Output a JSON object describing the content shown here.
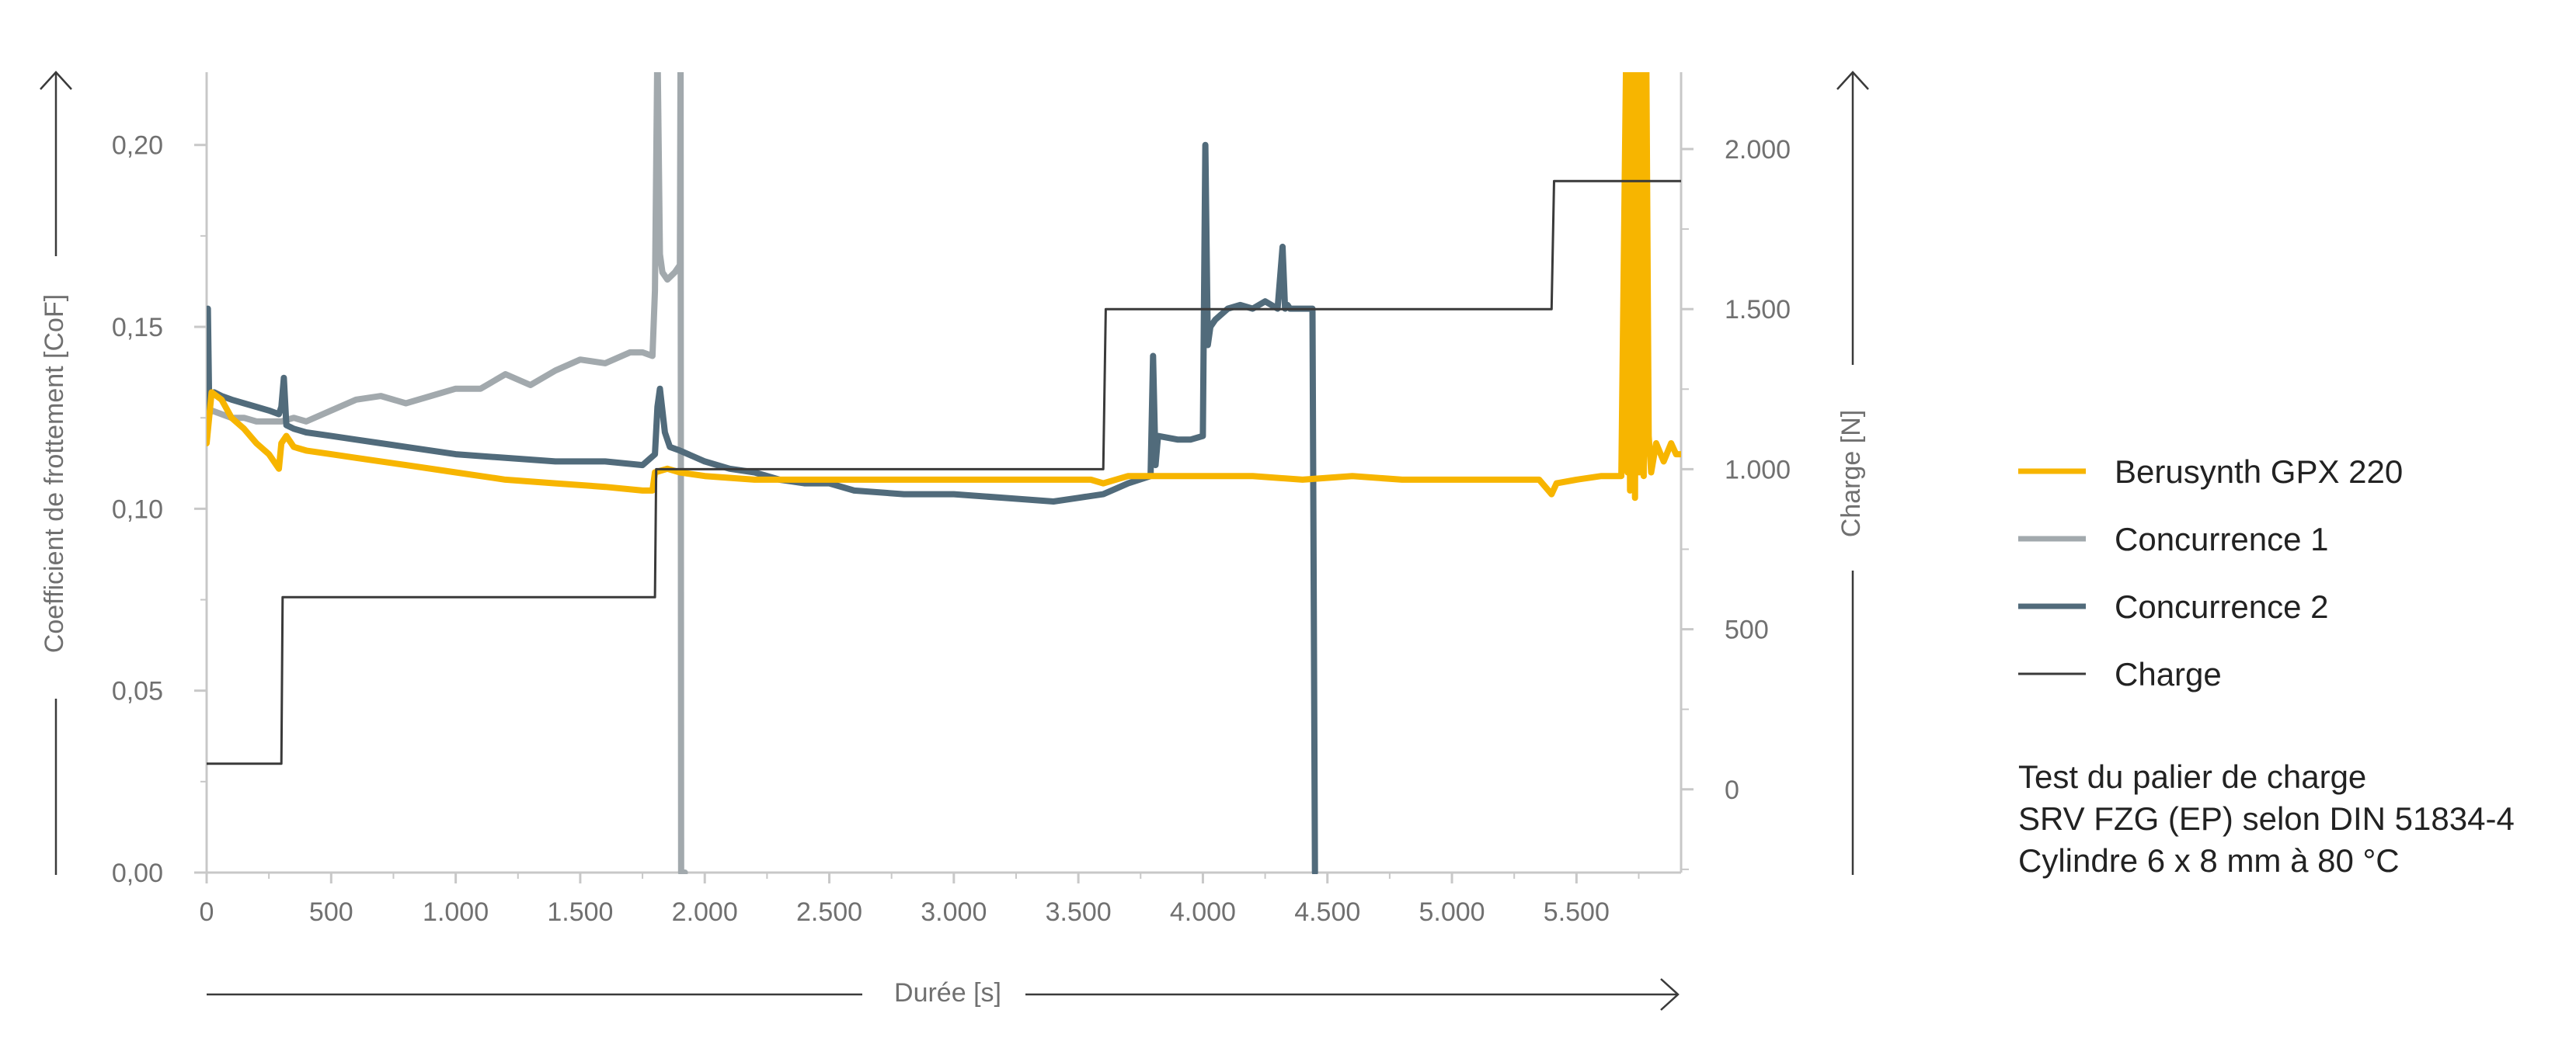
{
  "chart_data": {
    "type": "line",
    "x_axis": {
      "label": "Durée [s]",
      "range": [
        0,
        5920
      ],
      "ticks": [
        0,
        500,
        1000,
        1500,
        2000,
        2500,
        3000,
        3500,
        4000,
        4500,
        5000,
        5500
      ],
      "tick_labels": [
        "0",
        "500",
        "1.000",
        "1.500",
        "2.000",
        "2.500",
        "3.000",
        "3.500",
        "4.000",
        "4.500",
        "5.000",
        "5.500"
      ]
    },
    "y_axis_left": {
      "label": "Coefficient de frottement [CoF]",
      "range": [
        0,
        0.22
      ],
      "ticks": [
        0,
        0.05,
        0.1,
        0.15,
        0.2
      ],
      "tick_labels": [
        "0,00",
        "0,05",
        "0,10",
        "0,15",
        "0,20"
      ]
    },
    "y_axis_right": {
      "label": "Charge [N]",
      "range": [
        -260,
        2240
      ],
      "ticks": [
        0,
        500,
        1000,
        1500,
        2000
      ],
      "tick_labels": [
        "0",
        "500",
        "1.000",
        "1.500",
        "2.000"
      ]
    },
    "grid": false,
    "legend_position": "right",
    "series": [
      {
        "name": "Berusynth GPX 220",
        "color": "#F7B500",
        "axis": "left",
        "x": [
          0,
          20,
          60,
          100,
          150,
          200,
          250,
          290,
          300,
          320,
          350,
          400,
          500,
          600,
          800,
          1000,
          1200,
          1400,
          1600,
          1750,
          1790,
          1800,
          1850,
          1900,
          2000,
          2200,
          2400,
          2600,
          2800,
          3000,
          3200,
          3400,
          3500,
          3550,
          3600,
          3700,
          3800,
          3900,
          4000,
          4200,
          4400,
          4600,
          4800,
          5000,
          5200,
          5350,
          5400,
          5420,
          5500,
          5600,
          5680,
          5700,
          5705,
          5710,
          5715,
          5720,
          5725,
          5730,
          5735,
          5740,
          5745,
          5750,
          5755,
          5760,
          5770,
          5780,
          5790,
          5800,
          5820,
          5850,
          5880,
          5900,
          5920
        ],
        "y": [
          0.118,
          0.132,
          0.13,
          0.125,
          0.122,
          0.118,
          0.115,
          0.111,
          0.118,
          0.12,
          0.117,
          0.116,
          0.115,
          0.114,
          0.112,
          0.11,
          0.108,
          0.107,
          0.106,
          0.105,
          0.105,
          0.11,
          0.111,
          0.11,
          0.109,
          0.108,
          0.108,
          0.108,
          0.108,
          0.108,
          0.108,
          0.108,
          0.108,
          0.108,
          0.107,
          0.109,
          0.109,
          0.109,
          0.109,
          0.109,
          0.108,
          0.109,
          0.108,
          0.108,
          0.108,
          0.108,
          0.104,
          0.107,
          0.108,
          0.109,
          0.109,
          0.25,
          0.11,
          0.25,
          0.105,
          0.25,
          0.11,
          0.25,
          0.103,
          0.25,
          0.11,
          0.25,
          0.11,
          0.25,
          0.109,
          0.25,
          0.12,
          0.11,
          0.118,
          0.113,
          0.118,
          0.115,
          0.115
        ]
      },
      {
        "name": "Concurrence 1",
        "color": "#A2A9AD",
        "axis": "left",
        "x": [
          0,
          20,
          60,
          100,
          150,
          200,
          250,
          300,
          350,
          400,
          500,
          600,
          700,
          800,
          900,
          1000,
          1100,
          1200,
          1300,
          1400,
          1500,
          1600,
          1700,
          1750,
          1790,
          1800,
          1810,
          1820,
          1830,
          1850,
          1880,
          1900,
          1903,
          1905,
          1910,
          1920
        ],
        "y": [
          0.125,
          0.127,
          0.126,
          0.125,
          0.125,
          0.124,
          0.124,
          0.124,
          0.125,
          0.124,
          0.127,
          0.13,
          0.131,
          0.129,
          0.131,
          0.133,
          0.133,
          0.137,
          0.134,
          0.138,
          0.141,
          0.14,
          0.143,
          0.143,
          0.142,
          0.16,
          0.25,
          0.17,
          0.165,
          0.163,
          0.165,
          0.167,
          0.25,
          0.0,
          0.0,
          0.0
        ]
      },
      {
        "name": "Concurrence 2",
        "color": "#516B7B",
        "axis": "left",
        "x": [
          0,
          5,
          10,
          30,
          60,
          100,
          150,
          200,
          250,
          290,
          300,
          310,
          320,
          350,
          400,
          500,
          600,
          700,
          800,
          1000,
          1200,
          1400,
          1600,
          1750,
          1800,
          1810,
          1820,
          1840,
          1860,
          1900,
          2000,
          2100,
          2200,
          2300,
          2400,
          2500,
          2600,
          2800,
          3000,
          3200,
          3400,
          3500,
          3600,
          3700,
          3790,
          3800,
          3810,
          3820,
          3900,
          3950,
          4000,
          4010,
          4020,
          4030,
          4050,
          4100,
          4150,
          4200,
          4250,
          4300,
          4320,
          4330,
          4340,
          4350,
          4400,
          4420,
          4440,
          4450
        ],
        "y": [
          0.12,
          0.155,
          0.13,
          0.132,
          0.131,
          0.13,
          0.129,
          0.128,
          0.127,
          0.126,
          0.128,
          0.136,
          0.123,
          0.122,
          0.121,
          0.12,
          0.119,
          0.118,
          0.117,
          0.115,
          0.114,
          0.113,
          0.113,
          0.112,
          0.115,
          0.128,
          0.133,
          0.121,
          0.117,
          0.116,
          0.113,
          0.111,
          0.11,
          0.108,
          0.107,
          0.107,
          0.105,
          0.104,
          0.104,
          0.103,
          0.102,
          0.103,
          0.104,
          0.107,
          0.109,
          0.142,
          0.112,
          0.12,
          0.119,
          0.119,
          0.12,
          0.2,
          0.145,
          0.15,
          0.152,
          0.155,
          0.156,
          0.155,
          0.157,
          0.155,
          0.172,
          0.155,
          0.156,
          0.155,
          0.155,
          0.155,
          0.155,
          0.0
        ]
      },
      {
        "name": "Charge",
        "color": "#3A3A3A",
        "axis": "right",
        "x": [
          0,
          300,
          305,
          1800,
          1805,
          3600,
          3610,
          5400,
          5410,
          5920
        ],
        "y": [
          80,
          80,
          600,
          600,
          1000,
          1000,
          1500,
          1500,
          1900,
          1900
        ]
      }
    ]
  },
  "notes": [
    "Test du palier de charge",
    "SRV FZG (EP) selon DIN 51834-4",
    "Cylindre 6 x 8 mm à 80 °C"
  ]
}
